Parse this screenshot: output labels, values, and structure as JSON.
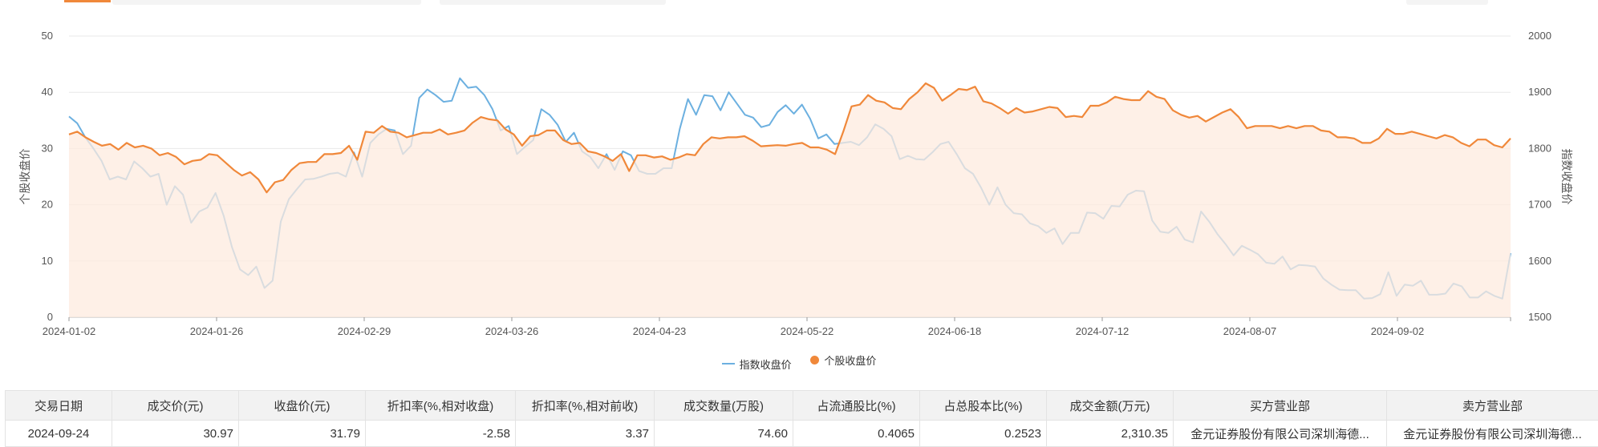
{
  "chart_data": {
    "type": "line",
    "left_axis_label": "个股收盘价",
    "right_axis_label": "指数收盘价",
    "left_ylim": [
      0,
      50
    ],
    "left_ticks": [
      0,
      10,
      20,
      30,
      40,
      50
    ],
    "right_ylim": [
      1500,
      2000
    ],
    "right_ticks": [
      1500,
      1600,
      1700,
      1800,
      1900,
      2000
    ],
    "x_tick_labels": [
      "2024-01-02",
      "2024-01-26",
      "2024-02-29",
      "2024-03-26",
      "2024-04-23",
      "2024-05-22",
      "2024-06-18",
      "2024-07-12",
      "2024-08-07",
      "2024-09-02"
    ],
    "legend_position": "bottom-center",
    "grid": true,
    "series": [
      {
        "name": "指数收盘价",
        "axis": "right",
        "color": "#6cb0e0",
        "fill": false,
        "values": [
          1857,
          1845,
          1820,
          1800,
          1778,
          1745,
          1750,
          1745,
          1777,
          1765,
          1750,
          1755,
          1700,
          1733,
          1718,
          1668,
          1688,
          1695,
          1721,
          1680,
          1625,
          1585,
          1575,
          1590,
          1552,
          1565,
          1670,
          1710,
          1728,
          1745,
          1746,
          1750,
          1755,
          1757,
          1750,
          1793,
          1750,
          1810,
          1825,
          1835,
          1832,
          1790,
          1805,
          1890,
          1905,
          1895,
          1883,
          1885,
          1925,
          1908,
          1910,
          1895,
          1870,
          1832,
          1840,
          1790,
          1803,
          1815,
          1870,
          1860,
          1842,
          1812,
          1828,
          1795,
          1785,
          1765,
          1790,
          1762,
          1795,
          1788,
          1760,
          1755,
          1755,
          1765,
          1765,
          1835,
          1888,
          1860,
          1895,
          1893,
          1868,
          1900,
          1880,
          1860,
          1855,
          1838,
          1842,
          1865,
          1877,
          1862,
          1878,
          1853,
          1818,
          1825,
          1808,
          1810,
          1812,
          1806,
          1820,
          1843,
          1835,
          1822,
          1781,
          1787,
          1781,
          1780,
          1793,
          1808,
          1812,
          1790,
          1765,
          1755,
          1730,
          1700,
          1731,
          1700,
          1685,
          1683,
          1667,
          1662,
          1650,
          1658,
          1630,
          1650,
          1650,
          1686,
          1685,
          1675,
          1698,
          1697,
          1718,
          1725,
          1724,
          1672,
          1652,
          1650,
          1661,
          1638,
          1633,
          1688,
          1670,
          1648,
          1630,
          1610,
          1627,
          1620,
          1612,
          1597,
          1595,
          1608,
          1585,
          1593,
          1592,
          1590,
          1569,
          1558,
          1549,
          1548,
          1548,
          1533,
          1534,
          1541,
          1580,
          1538,
          1558,
          1556,
          1565,
          1540,
          1540,
          1542,
          1560,
          1555,
          1535,
          1535,
          1546,
          1538,
          1533,
          1614
        ]
      },
      {
        "name": "个股收盘价",
        "axis": "left",
        "color": "#f0883a",
        "fill": true,
        "values": [
          32.5,
          33.0,
          32.0,
          31.2,
          30.5,
          30.8,
          29.8,
          31.0,
          30.2,
          30.5,
          30.0,
          28.8,
          29.2,
          28.5,
          27.2,
          27.8,
          28.0,
          29.0,
          28.8,
          27.5,
          26.2,
          25.2,
          25.8,
          24.5,
          22.2,
          24.0,
          24.4,
          26.2,
          27.4,
          27.6,
          27.6,
          29.0,
          29.0,
          29.2,
          30.5,
          28.0,
          33.0,
          32.8,
          34.0,
          33.0,
          32.8,
          32.0,
          32.4,
          32.8,
          32.8,
          33.4,
          32.5,
          32.8,
          33.2,
          34.6,
          35.6,
          35.2,
          35.0,
          33.4,
          32.5,
          30.5,
          32.2,
          32.4,
          33.2,
          33.2,
          31.5,
          30.8,
          31.0,
          29.5,
          29.2,
          28.6,
          27.8,
          29.0,
          26.0,
          28.8,
          28.8,
          28.4,
          28.6,
          28.0,
          28.4,
          29.0,
          28.8,
          30.8,
          32.0,
          31.8,
          32.0,
          32.0,
          32.2,
          31.4,
          30.4,
          30.5,
          30.6,
          30.5,
          30.8,
          31.0,
          30.2,
          30.2,
          29.8,
          29.0,
          33.0,
          37.5,
          37.8,
          39.5,
          38.5,
          38.2,
          37.2,
          37.0,
          38.8,
          40.0,
          41.6,
          40.8,
          38.5,
          39.5,
          40.6,
          40.4,
          41.0,
          38.4,
          38.0,
          37.2,
          36.2,
          37.2,
          36.4,
          36.6,
          37.0,
          37.4,
          37.2,
          35.6,
          35.8,
          35.6,
          37.6,
          37.6,
          38.2,
          39.2,
          38.8,
          38.6,
          38.6,
          40.2,
          39.2,
          38.8,
          36.8,
          36.0,
          35.5,
          35.8,
          34.8,
          35.6,
          36.4,
          37.0,
          35.6,
          33.6,
          34.0,
          34.0,
          34.0,
          33.6,
          34.0,
          33.6,
          34.0,
          34.0,
          33.2,
          33.0,
          32.0,
          32.0,
          31.8,
          31.0,
          31.0,
          31.8,
          33.5,
          32.6,
          32.6,
          33.0,
          32.6,
          32.2,
          31.8,
          32.4,
          32.0,
          31.0,
          30.4,
          31.6,
          31.6,
          30.6,
          30.2,
          31.8
        ]
      }
    ]
  },
  "table": {
    "headers": [
      "交易日期",
      "成交价(元)",
      "收盘价(元)",
      "折扣率(%,相对收盘)",
      "折扣率(%,相对前收)",
      "成交数量(万股)",
      "占流通股比(%)",
      "占总股本比(%)",
      "成交金额(万元)",
      "买方营业部",
      "卖方营业部"
    ],
    "rows": [
      [
        "2024-09-24",
        "30.97",
        "31.79",
        "-2.58",
        "3.37",
        "74.60",
        "0.4065",
        "0.2523",
        "2,310.35",
        "金元证券股份有限公司深圳海德...",
        "金元证券股份有限公司深圳海德..."
      ]
    ]
  }
}
